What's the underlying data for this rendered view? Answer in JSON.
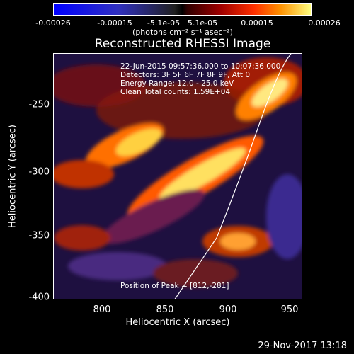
{
  "colorbar": {
    "ticks": [
      "-0.00026",
      "-0.00015",
      "-5.1e-05",
      "5.1e-05",
      "0.00015",
      "0.00026"
    ],
    "units": "(photons cm⁻² s⁻¹ asec⁻²)"
  },
  "title": "Reconstructed RHESSI Image",
  "info": {
    "time": "22-Jun-2015 09:57:36.000 to 10:07:36.000",
    "detectors": "Detectors: 3F 5F 6F 7F 8F 9F, Att 0",
    "energy": "Energy Range: 12.0 - 25.0 keV",
    "clean": "Clean     Total counts: 1.59E+04",
    "peak": "Position of Peak = [812,-281]"
  },
  "axes": {
    "x_title": "Heliocentric X (arcsec)",
    "y_title": "Heliocentric Y (arcsec)",
    "x_ticks": [
      "800",
      "850",
      "900",
      "950"
    ],
    "y_ticks": [
      "-250",
      "-300",
      "-350",
      "-400"
    ]
  },
  "footer": {
    "date": "29-Nov-2017 13:18"
  },
  "colors": {
    "background": "#000000",
    "text": "#ffffff",
    "limb": "#ffffff"
  }
}
